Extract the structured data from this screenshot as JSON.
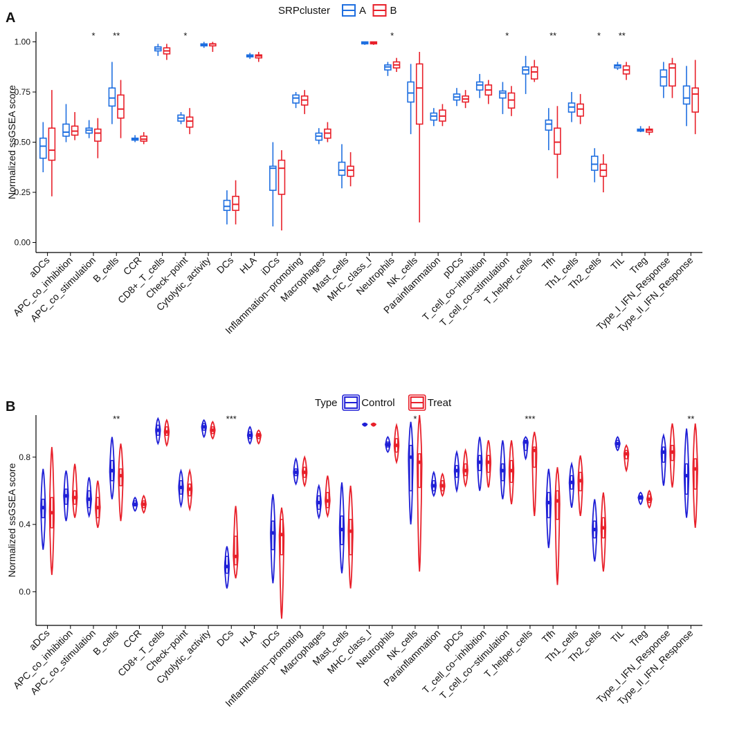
{
  "chart_data": [
    {
      "type": "box",
      "panel_label": "A",
      "ylabel": "Normalized ssGSEA score",
      "ylim": [
        -0.05,
        1.05
      ],
      "yticks": [
        0.0,
        0.25,
        0.5,
        0.75,
        1.0
      ],
      "ytick_labels": [
        "0.00",
        "0.25",
        "0.50",
        "0.75",
        "1.00"
      ],
      "legend": {
        "title": "SRPcluster",
        "entries": [
          "A",
          "B"
        ],
        "placement": "top-center"
      },
      "categories": [
        "aDCs",
        "APC_co_inhibition",
        "APC_co_stimulation",
        "B_cells",
        "CCR",
        "CD8+_T_cells",
        "Check−point",
        "Cytolytic_activity",
        "DCs",
        "HLA",
        "iDCs",
        "Inflammation−promoting",
        "Macrophages",
        "Mast_cells",
        "MHC_class_I",
        "Neutrophils",
        "NK_cells",
        "Parainflammation",
        "pDCs",
        "T_cell_co−inhibition",
        "T_cell_co−stimulation",
        "T_helper_cells",
        "Tfh",
        "Th1_cells",
        "Th2_cells",
        "TIL",
        "Treg",
        "Type_I_IFN_Response",
        "Type_II_IFN_Response"
      ],
      "significance": [
        "",
        "",
        "*",
        "**",
        "",
        "",
        "*",
        "",
        "",
        "",
        "",
        "",
        "",
        "",
        "",
        "*",
        "",
        "",
        "",
        "",
        "*",
        "",
        "**",
        "",
        "*",
        "**",
        "",
        "",
        ""
      ],
      "series": [
        {
          "name": "A",
          "color": "#1f6fe0",
          "boxes": [
            [
              0.35,
              0.42,
              0.48,
              0.52,
              0.6
            ],
            [
              0.5,
              0.53,
              0.55,
              0.59,
              0.69
            ],
            [
              0.52,
              0.545,
              0.56,
              0.57,
              0.61
            ],
            [
              0.59,
              0.68,
              0.72,
              0.77,
              0.9
            ],
            [
              0.5,
              0.51,
              0.515,
              0.52,
              0.535
            ],
            [
              0.93,
              0.955,
              0.965,
              0.975,
              0.99
            ],
            [
              0.59,
              0.605,
              0.62,
              0.635,
              0.65
            ],
            [
              0.97,
              0.98,
              0.985,
              0.99,
              1.0
            ],
            [
              0.09,
              0.16,
              0.18,
              0.21,
              0.26
            ],
            [
              0.915,
              0.925,
              0.93,
              0.935,
              0.945
            ],
            [
              0.08,
              0.26,
              0.37,
              0.38,
              0.5
            ],
            [
              0.67,
              0.695,
              0.72,
              0.735,
              0.75
            ],
            [
              0.49,
              0.51,
              0.53,
              0.545,
              0.57
            ],
            [
              0.27,
              0.335,
              0.36,
              0.4,
              0.49
            ],
            [
              0.985,
              0.99,
              0.995,
              1.0,
              1.0
            ],
            [
              0.83,
              0.86,
              0.875,
              0.885,
              0.9
            ],
            [
              0.54,
              0.7,
              0.745,
              0.8,
              0.89
            ],
            [
              0.58,
              0.61,
              0.63,
              0.645,
              0.67
            ],
            [
              0.68,
              0.71,
              0.725,
              0.74,
              0.77
            ],
            [
              0.72,
              0.76,
              0.785,
              0.8,
              0.84
            ],
            [
              0.64,
              0.72,
              0.745,
              0.755,
              0.8
            ],
            [
              0.74,
              0.84,
              0.86,
              0.875,
              0.93
            ],
            [
              0.46,
              0.56,
              0.59,
              0.61,
              0.67
            ],
            [
              0.6,
              0.65,
              0.675,
              0.695,
              0.75
            ],
            [
              0.3,
              0.36,
              0.39,
              0.43,
              0.47
            ],
            [
              0.86,
              0.87,
              0.88,
              0.885,
              0.9
            ],
            [
              0.55,
              0.555,
              0.56,
              0.565,
              0.58
            ],
            [
              0.72,
              0.78,
              0.825,
              0.86,
              0.9
            ],
            [
              0.58,
              0.69,
              0.72,
              0.78,
              0.88
            ]
          ]
        },
        {
          "name": "B",
          "color": "#e8202a",
          "boxes": [
            [
              0.23,
              0.41,
              0.46,
              0.57,
              0.76
            ],
            [
              0.51,
              0.535,
              0.555,
              0.58,
              0.65
            ],
            [
              0.42,
              0.505,
              0.545,
              0.565,
              0.62
            ],
            [
              0.52,
              0.62,
              0.665,
              0.735,
              0.81
            ],
            [
              0.49,
              0.505,
              0.515,
              0.53,
              0.55
            ],
            [
              0.91,
              0.94,
              0.955,
              0.97,
              0.99
            ],
            [
              0.54,
              0.575,
              0.605,
              0.625,
              0.67
            ],
            [
              0.95,
              0.98,
              0.99,
              0.99,
              1.0
            ],
            [
              0.09,
              0.16,
              0.19,
              0.23,
              0.31
            ],
            [
              0.9,
              0.92,
              0.93,
              0.935,
              0.95
            ],
            [
              0.06,
              0.24,
              0.37,
              0.41,
              0.46
            ],
            [
              0.64,
              0.685,
              0.71,
              0.73,
              0.76
            ],
            [
              0.5,
              0.52,
              0.545,
              0.565,
              0.6
            ],
            [
              0.28,
              0.33,
              0.36,
              0.38,
              0.45
            ],
            [
              0.985,
              0.99,
              0.995,
              1.0,
              1.0
            ],
            [
              0.85,
              0.87,
              0.885,
              0.9,
              0.92
            ],
            [
              0.1,
              0.59,
              0.77,
              0.89,
              0.95
            ],
            [
              0.58,
              0.605,
              0.63,
              0.66,
              0.69
            ],
            [
              0.67,
              0.7,
              0.715,
              0.73,
              0.76
            ],
            [
              0.69,
              0.735,
              0.76,
              0.785,
              0.81
            ],
            [
              0.63,
              0.67,
              0.71,
              0.745,
              0.78
            ],
            [
              0.8,
              0.815,
              0.85,
              0.875,
              0.91
            ],
            [
              0.32,
              0.44,
              0.5,
              0.57,
              0.68
            ],
            [
              0.59,
              0.63,
              0.665,
              0.69,
              0.74
            ],
            [
              0.25,
              0.33,
              0.36,
              0.39,
              0.44
            ],
            [
              0.81,
              0.84,
              0.86,
              0.88,
              0.9
            ],
            [
              0.535,
              0.55,
              0.56,
              0.565,
              0.58
            ],
            [
              0.72,
              0.78,
              0.87,
              0.89,
              0.92
            ],
            [
              0.54,
              0.65,
              0.74,
              0.77,
              0.91
            ]
          ]
        }
      ]
    },
    {
      "type": "violin-box",
      "panel_label": "B",
      "ylabel": "Normalized ssGSEA score",
      "ylim": [
        -0.2,
        1.05
      ],
      "yticks": [
        0.0,
        0.4,
        0.8
      ],
      "ytick_labels": [
        "0.0",
        "0.4",
        "0.8"
      ],
      "legend": {
        "title": "Type",
        "entries": [
          "Control",
          "Treat"
        ],
        "placement": "top-center"
      },
      "categories": [
        "aDCs",
        "APC_co_inhibition",
        "APC_co_stimulation",
        "B_cells",
        "CCR",
        "CD8+_T_cells",
        "Check−point",
        "Cytolytic_activity",
        "DCs",
        "HLA",
        "iDCs",
        "Inflammation−promoting",
        "Macrophages",
        "Mast_cells",
        "MHC_class_I",
        "Neutrophils",
        "NK_cells",
        "Parainflammation",
        "pDCs",
        "T_cell_co−inhibition",
        "T_cell_co−stimulation",
        "T_helper_cells",
        "Tfh",
        "Th1_cells",
        "Th2_cells",
        "TIL",
        "Treg",
        "Type_I_IFN_Response",
        "Type_II_IFN_Response"
      ],
      "significance": [
        "",
        "",
        "",
        "**",
        "",
        "",
        "",
        "",
        "***",
        "",
        "",
        "",
        "",
        "",
        "",
        "",
        "*",
        "",
        "",
        "",
        "",
        "***",
        "",
        "",
        "",
        "",
        "",
        "",
        "**"
      ],
      "series": [
        {
          "name": "Control",
          "color": "#1f1fd6",
          "boxes": [
            [
              0.25,
              0.44,
              0.5,
              0.55,
              0.73
            ],
            [
              0.42,
              0.52,
              0.57,
              0.61,
              0.72
            ],
            [
              0.45,
              0.5,
              0.55,
              0.6,
              0.68
            ],
            [
              0.55,
              0.66,
              0.72,
              0.78,
              0.92
            ],
            [
              0.48,
              0.51,
              0.52,
              0.54,
              0.56
            ],
            [
              0.88,
              0.93,
              0.96,
              0.99,
              1.03
            ],
            [
              0.51,
              0.58,
              0.62,
              0.66,
              0.72
            ],
            [
              0.92,
              0.96,
              0.98,
              1.0,
              1.02
            ],
            [
              0.02,
              0.11,
              0.15,
              0.21,
              0.27
            ],
            [
              0.88,
              0.91,
              0.93,
              0.95,
              0.98
            ],
            [
              0.05,
              0.25,
              0.35,
              0.42,
              0.58
            ],
            [
              0.64,
              0.69,
              0.71,
              0.73,
              0.79
            ],
            [
              0.44,
              0.49,
              0.53,
              0.57,
              0.63
            ],
            [
              0.11,
              0.28,
              0.37,
              0.45,
              0.65
            ],
            [
              0.985,
              0.99,
              0.995,
              1.0,
              1.0
            ],
            [
              0.83,
              0.86,
              0.875,
              0.89,
              0.92
            ],
            [
              0.4,
              0.6,
              0.8,
              0.87,
              1.01
            ],
            [
              0.57,
              0.6,
              0.63,
              0.66,
              0.71
            ],
            [
              0.6,
              0.68,
              0.72,
              0.75,
              0.83
            ],
            [
              0.6,
              0.72,
              0.77,
              0.81,
              0.92
            ],
            [
              0.55,
              0.66,
              0.72,
              0.76,
              0.9
            ],
            [
              0.79,
              0.84,
              0.89,
              0.9,
              0.92
            ],
            [
              0.26,
              0.44,
              0.53,
              0.59,
              0.73
            ],
            [
              0.5,
              0.61,
              0.65,
              0.69,
              0.76
            ],
            [
              0.18,
              0.32,
              0.37,
              0.42,
              0.55
            ],
            [
              0.84,
              0.86,
              0.88,
              0.9,
              0.92
            ],
            [
              0.52,
              0.55,
              0.56,
              0.57,
              0.59
            ],
            [
              0.63,
              0.77,
              0.83,
              0.86,
              0.93
            ],
            [
              0.44,
              0.58,
              0.69,
              0.76,
              0.97
            ]
          ]
        },
        {
          "name": "Treat",
          "color": "#e8202a",
          "boxes": [
            [
              0.1,
              0.38,
              0.47,
              0.56,
              0.86
            ],
            [
              0.44,
              0.52,
              0.56,
              0.6,
              0.76
            ],
            [
              0.38,
              0.44,
              0.5,
              0.56,
              0.66
            ],
            [
              0.42,
              0.63,
              0.69,
              0.73,
              0.88
            ],
            [
              0.47,
              0.5,
              0.52,
              0.54,
              0.57
            ],
            [
              0.87,
              0.93,
              0.95,
              0.98,
              1.02
            ],
            [
              0.49,
              0.57,
              0.61,
              0.64,
              0.72
            ],
            [
              0.91,
              0.94,
              0.96,
              0.98,
              1.01
            ],
            [
              0.08,
              0.16,
              0.21,
              0.33,
              0.51
            ],
            [
              0.88,
              0.91,
              0.93,
              0.94,
              0.96
            ],
            [
              -0.16,
              0.22,
              0.34,
              0.43,
              0.5
            ],
            [
              0.63,
              0.68,
              0.71,
              0.74,
              0.8
            ],
            [
              0.45,
              0.5,
              0.54,
              0.59,
              0.69
            ],
            [
              0.02,
              0.22,
              0.36,
              0.43,
              0.63
            ],
            [
              0.985,
              0.99,
              0.995,
              1.0,
              1.0
            ],
            [
              0.77,
              0.83,
              0.87,
              0.91,
              0.99
            ],
            [
              0.12,
              0.62,
              0.77,
              0.82,
              1.05
            ],
            [
              0.57,
              0.6,
              0.63,
              0.66,
              0.7
            ],
            [
              0.63,
              0.69,
              0.72,
              0.76,
              0.84
            ],
            [
              0.62,
              0.71,
              0.77,
              0.81,
              0.9
            ],
            [
              0.52,
              0.65,
              0.72,
              0.78,
              0.9
            ],
            [
              0.45,
              0.74,
              0.84,
              0.86,
              0.95
            ],
            [
              0.04,
              0.43,
              0.54,
              0.6,
              0.74
            ],
            [
              0.45,
              0.6,
              0.66,
              0.71,
              0.81
            ],
            [
              0.12,
              0.32,
              0.38,
              0.44,
              0.59
            ],
            [
              0.72,
              0.79,
              0.82,
              0.84,
              0.87
            ],
            [
              0.5,
              0.53,
              0.55,
              0.58,
              0.6
            ],
            [
              0.62,
              0.78,
              0.83,
              0.87,
              1.0
            ],
            [
              0.38,
              0.61,
              0.73,
              0.79,
              1.0
            ]
          ]
        }
      ]
    }
  ]
}
